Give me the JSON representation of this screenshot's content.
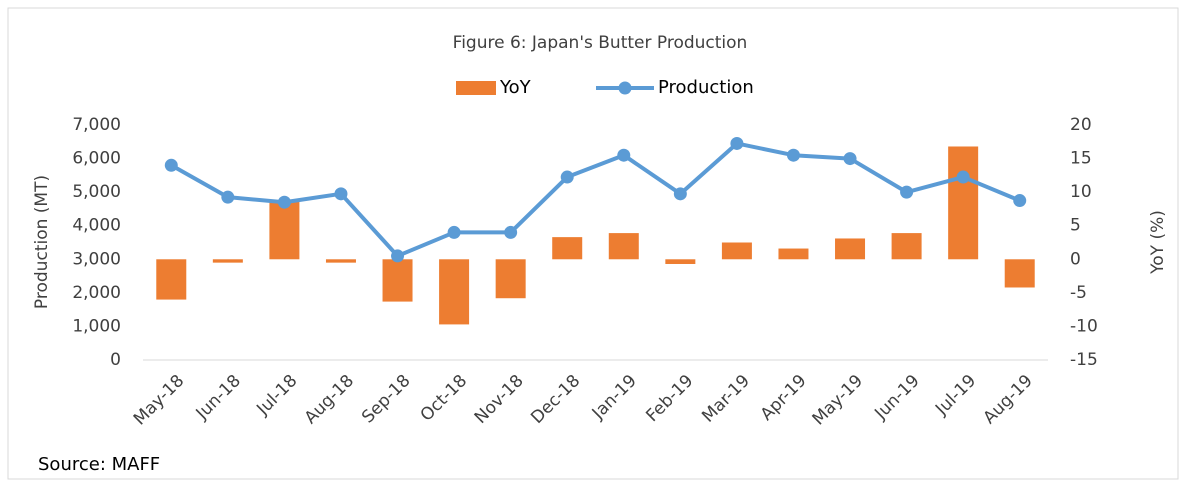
{
  "chart_data": {
    "type": "combo",
    "title": "Figure 6: Japan's Butter Production",
    "categories": [
      "May-18",
      "Jun-18",
      "Jul-18",
      "Aug-18",
      "Sep-18",
      "Oct-18",
      "Nov-18",
      "Dec-18",
      "Jan-19",
      "Feb-19",
      "Mar-19",
      "Apr-19",
      "May-19",
      "Jun-19",
      "Jul-19",
      "Aug-19"
    ],
    "series": [
      {
        "name": "YoY",
        "type": "bar",
        "axis": "y2",
        "color": "#ed7d31",
        "values": [
          -6.0,
          -0.5,
          8.6,
          -0.5,
          -6.3,
          -9.7,
          -5.8,
          3.3,
          3.9,
          -0.7,
          2.5,
          1.6,
          3.1,
          3.9,
          16.8,
          -4.2
        ]
      },
      {
        "name": "Production",
        "type": "line",
        "axis": "y",
        "color": "#5b9bd5",
        "values": [
          5800,
          4850,
          4700,
          4950,
          3100,
          3800,
          3800,
          5450,
          6100,
          4950,
          6450,
          6100,
          6000,
          5000,
          5450,
          4750
        ]
      }
    ],
    "ylabel": "Production (MT)",
    "y2label": "YoY (%)",
    "ylim": [
      0,
      7000
    ],
    "yticks": [
      0,
      {
        "value": 1000,
        "label": "1,000"
      },
      {
        "value": 2000,
        "label": "2,000"
      },
      {
        "value": 3000,
        "label": "3,000"
      },
      {
        "value": 4000,
        "label": "4,000"
      },
      {
        "value": 5000,
        "label": "5,000"
      },
      {
        "value": 6000,
        "label": "6,000"
      },
      {
        "value": 7000,
        "label": "7,000"
      }
    ],
    "y2lim": [
      -15,
      20
    ],
    "y2ticks": [
      -15,
      -10,
      -5,
      0,
      5,
      10,
      15,
      20
    ],
    "legend": "top",
    "grid": false,
    "source": "Source: MAFF"
  }
}
